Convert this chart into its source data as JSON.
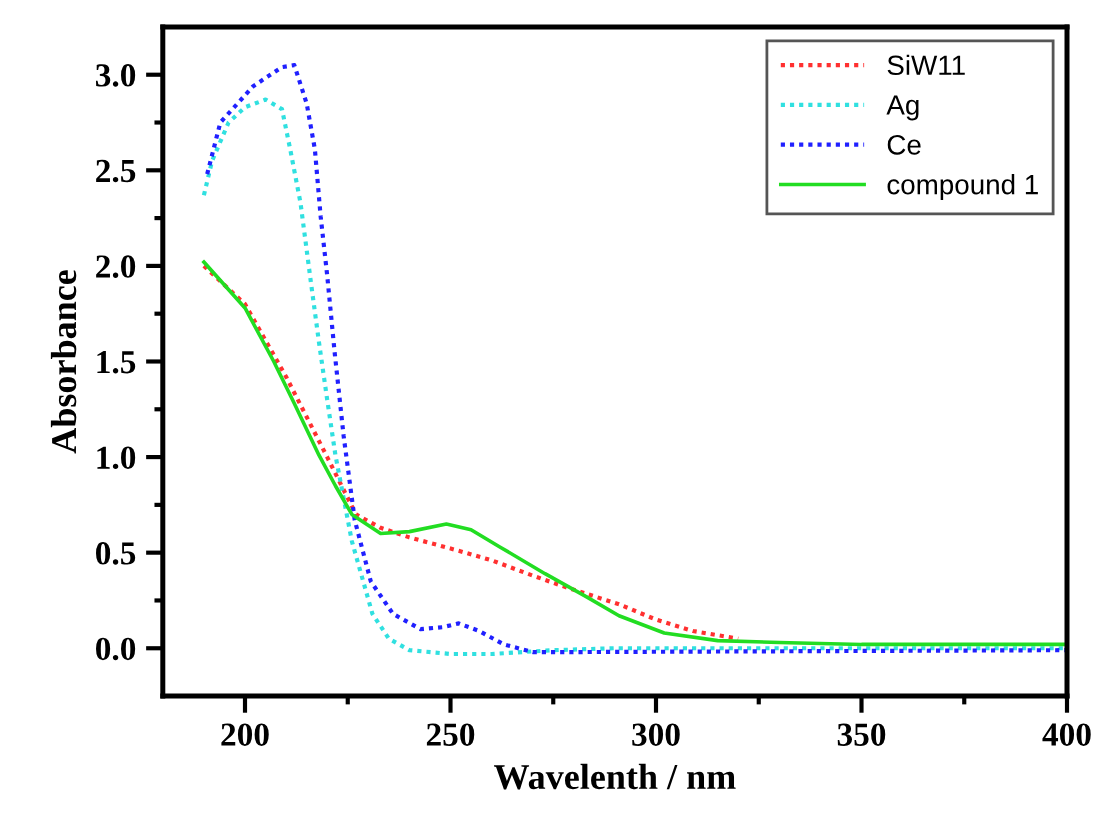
{
  "chart_data": {
    "type": "line",
    "xlabel": "Wavelenth / nm",
    "ylabel": "Absorbance",
    "xlim": [
      180,
      400
    ],
    "ylim": [
      -0.25,
      3.25
    ],
    "xticks": [
      200,
      {
        "value": 225,
        "label": null
      },
      250,
      {
        "value": 275,
        "label": null
      },
      300,
      {
        "value": 325,
        "label": null
      },
      350,
      {
        "value": 375,
        "label": null
      },
      400
    ],
    "yticks": [
      "0.0",
      {
        "value": 0.25,
        "label": null
      },
      {
        "value": 0.5,
        "label": "0.5"
      },
      {
        "value": 0.75,
        "label": null
      },
      {
        "value": 1.0,
        "label": "1.0"
      },
      {
        "value": 1.25,
        "label": null
      },
      {
        "value": 1.5,
        "label": "1.5"
      },
      {
        "value": 1.75,
        "label": null
      },
      {
        "value": 2.0,
        "label": "2.0"
      },
      {
        "value": 2.25,
        "label": null
      },
      {
        "value": 2.5,
        "label": "2.5"
      },
      {
        "value": 2.75,
        "label": null
      },
      {
        "value": 3.0,
        "label": "3.0"
      }
    ],
    "grid": false,
    "legend": "top right",
    "marker": "none",
    "series": [
      {
        "name": "SiW11",
        "color": "#ff3030",
        "line_style": "dotted",
        "x": [
          190,
          200,
          210,
          220,
          227,
          233,
          240,
          252,
          260,
          270,
          278,
          291,
          300,
          309,
          320
        ],
        "values": [
          2.0,
          1.8,
          1.42,
          1.0,
          0.7,
          0.63,
          0.58,
          0.51,
          0.46,
          0.38,
          0.32,
          0.23,
          0.15,
          0.09,
          0.05
        ]
      },
      {
        "name": "Ag",
        "color": "#30e0e0",
        "line_style": "dotted",
        "x": [
          190,
          192,
          196,
          200,
          205,
          209,
          211,
          213.5,
          216,
          218,
          220,
          222,
          226,
          231,
          235,
          240,
          250,
          260,
          275,
          290,
          400
        ],
        "values": [
          2.37,
          2.55,
          2.75,
          2.83,
          2.87,
          2.82,
          2.61,
          2.33,
          1.92,
          1.6,
          1.3,
          1.01,
          0.56,
          0.18,
          0.05,
          -0.01,
          -0.03,
          -0.03,
          -0.01,
          0.0,
          0.0
        ]
      },
      {
        "name": "Ce",
        "color": "#2020ff",
        "line_style": "dotted",
        "x": [
          190.8,
          194,
          202,
          209,
          212,
          215,
          217,
          218.4,
          220,
          221.8,
          224,
          226.7,
          230.6,
          236,
          242.7,
          248,
          252,
          257,
          263,
          270,
          280,
          400
        ],
        "values": [
          2.48,
          2.75,
          2.94,
          3.04,
          3.05,
          2.85,
          2.61,
          2.26,
          1.95,
          1.55,
          1.11,
          0.67,
          0.35,
          0.18,
          0.1,
          0.11,
          0.13,
          0.09,
          0.02,
          -0.02,
          -0.02,
          -0.01
        ]
      },
      {
        "name": "compound 1",
        "color": "#22dd22",
        "line_style": "solid",
        "x": [
          190,
          200,
          207,
          212,
          218,
          222,
          226,
          233,
          240,
          249,
          255,
          262,
          273,
          283,
          291,
          302,
          315,
          330,
          350,
          400
        ],
        "values": [
          2.02,
          1.78,
          1.5,
          1.28,
          1.01,
          0.85,
          0.7,
          0.6,
          0.61,
          0.65,
          0.62,
          0.53,
          0.39,
          0.27,
          0.17,
          0.08,
          0.04,
          0.03,
          0.02,
          0.02
        ]
      }
    ]
  }
}
